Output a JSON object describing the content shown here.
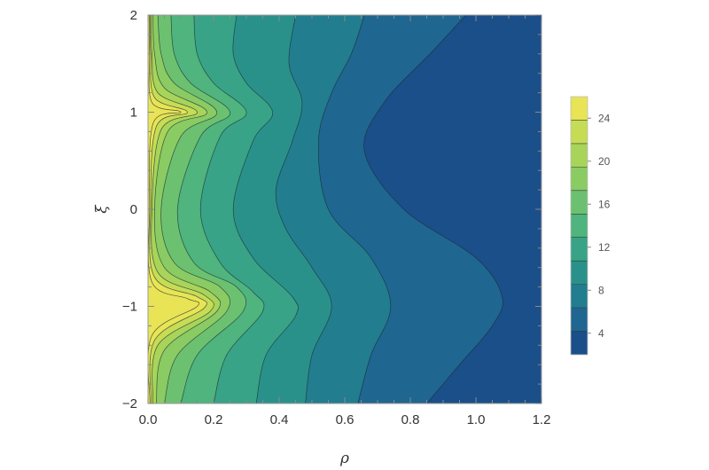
{
  "chart_data": {
    "type": "contour",
    "xlabel": "ρ",
    "ylabel": "ξ",
    "xlim": [
      0.0,
      1.2
    ],
    "ylim": [
      -2,
      2
    ],
    "x_ticks": [
      "0.0",
      "0.2",
      "0.4",
      "0.6",
      "0.8",
      "1.0",
      "1.2"
    ],
    "y_ticks": [
      "-2",
      "-1",
      "0",
      "1",
      "2"
    ],
    "colorbar": {
      "ticks": [
        "4",
        "8",
        "12",
        "16",
        "20",
        "24"
      ],
      "range": [
        2,
        26
      ],
      "colors": [
        "#1b4f8a",
        "#1f6690",
        "#227d8f",
        "#2a918a",
        "#38a386",
        "#4fb47d",
        "#6cc170",
        "#8acb63",
        "#a8d45a",
        "#c6dc55",
        "#e8e455"
      ]
    },
    "contour_boundaries": [
      {
        "level": 2,
        "points": [
          [
            1.2,
            -2
          ],
          [
            1.2,
            2
          ]
        ]
      },
      {
        "level": 4,
        "points": [
          [
            0.85,
            -2
          ],
          [
            0.95,
            -1.6
          ],
          [
            1.05,
            -1.2
          ],
          [
            1.08,
            -0.9
          ],
          [
            1.0,
            -0.5
          ],
          [
            0.78,
            0.0
          ],
          [
            0.66,
            0.6
          ],
          [
            0.72,
            1.1
          ],
          [
            0.86,
            1.6
          ],
          [
            0.97,
            2.0
          ]
        ]
      },
      {
        "level": 6,
        "points": [
          [
            0.64,
            -2
          ],
          [
            0.68,
            -1.5
          ],
          [
            0.74,
            -1.0
          ],
          [
            0.68,
            -0.5
          ],
          [
            0.55,
            0.0
          ],
          [
            0.52,
            0.7
          ],
          [
            0.56,
            1.2
          ],
          [
            0.62,
            1.6
          ],
          [
            0.66,
            2.0
          ]
        ]
      },
      {
        "level": 8,
        "points": [
          [
            0.48,
            -2
          ],
          [
            0.5,
            -1.5
          ],
          [
            0.56,
            -1.0
          ],
          [
            0.5,
            -0.6
          ],
          [
            0.42,
            -0.2
          ],
          [
            0.39,
            0.2
          ],
          [
            0.44,
            0.7
          ],
          [
            0.47,
            1.1
          ],
          [
            0.43,
            1.5
          ],
          [
            0.45,
            2.0
          ]
        ]
      },
      {
        "level": 10,
        "points": [
          [
            0.33,
            -2
          ],
          [
            0.36,
            -1.5
          ],
          [
            0.45,
            -1.1
          ],
          [
            0.44,
            -0.9
          ],
          [
            0.32,
            -0.5
          ],
          [
            0.26,
            0.0
          ],
          [
            0.32,
            0.7
          ],
          [
            0.38,
            1.0
          ],
          [
            0.3,
            1.3
          ],
          [
            0.26,
            1.6
          ],
          [
            0.27,
            2.0
          ]
        ]
      },
      {
        "level": 12,
        "points": [
          [
            0.2,
            -2
          ],
          [
            0.24,
            -1.5
          ],
          [
            0.35,
            -1.05
          ],
          [
            0.32,
            -0.85
          ],
          [
            0.22,
            -0.55
          ],
          [
            0.16,
            0.0
          ],
          [
            0.22,
            0.75
          ],
          [
            0.3,
            1.0
          ],
          [
            0.2,
            1.3
          ],
          [
            0.15,
            1.6
          ],
          [
            0.14,
            2.0
          ]
        ]
      },
      {
        "level": 14,
        "points": [
          [
            0.1,
            -2
          ],
          [
            0.15,
            -1.5
          ],
          [
            0.29,
            -1.05
          ],
          [
            0.27,
            -0.8
          ],
          [
            0.14,
            -0.55
          ],
          [
            0.09,
            0.0
          ],
          [
            0.16,
            0.75
          ],
          [
            0.25,
            1.0
          ],
          [
            0.13,
            1.3
          ],
          [
            0.08,
            1.6
          ],
          [
            0.07,
            2.0
          ]
        ]
      },
      {
        "level": 16,
        "points": [
          [
            0.05,
            -2
          ],
          [
            0.09,
            -1.5
          ],
          [
            0.24,
            -1.05
          ],
          [
            0.22,
            -0.8
          ],
          [
            0.08,
            -0.55
          ],
          [
            0.04,
            0.0
          ],
          [
            0.1,
            0.75
          ],
          [
            0.21,
            1.0
          ],
          [
            0.08,
            1.3
          ],
          [
            0.04,
            1.6
          ],
          [
            0.03,
            2.0
          ]
        ]
      },
      {
        "level": 18,
        "points": [
          [
            0.025,
            -2
          ],
          [
            0.05,
            -1.45
          ],
          [
            0.21,
            -1.05
          ],
          [
            0.19,
            -0.85
          ],
          [
            0.05,
            -0.6
          ],
          [
            0.02,
            0.0
          ],
          [
            0.06,
            0.8
          ],
          [
            0.18,
            1.0
          ],
          [
            0.05,
            1.25
          ],
          [
            0.02,
            1.6
          ],
          [
            0.015,
            2.0
          ]
        ]
      },
      {
        "level": 20,
        "points": [
          [
            0.015,
            -2
          ],
          [
            0.03,
            -1.4
          ],
          [
            0.19,
            -1.05
          ],
          [
            0.17,
            -0.88
          ],
          [
            0.03,
            -0.65
          ],
          [
            0.012,
            0.0
          ],
          [
            0.04,
            0.82
          ],
          [
            0.15,
            1.0
          ],
          [
            0.03,
            1.2
          ],
          [
            0.012,
            1.6
          ],
          [
            0.01,
            2.0
          ]
        ]
      },
      {
        "level": 22,
        "points": [
          [
            0.01,
            -2
          ],
          [
            0.02,
            -1.35
          ],
          [
            0.17,
            -1.02
          ],
          [
            0.15,
            -0.9
          ],
          [
            0.02,
            -0.7
          ],
          [
            0.008,
            0.0
          ],
          [
            0.025,
            0.85
          ],
          [
            0.12,
            1.0
          ],
          [
            0.02,
            1.15
          ],
          [
            0.008,
            1.6
          ],
          [
            0.006,
            2.0
          ]
        ]
      },
      {
        "level": 24,
        "points": [
          [
            0.006,
            -2
          ],
          [
            0.012,
            -1.3
          ],
          [
            0.15,
            -1.0
          ],
          [
            0.12,
            -0.92
          ],
          [
            0.012,
            -0.75
          ],
          [
            0.005,
            0.0
          ],
          [
            0.015,
            0.88
          ],
          [
            0.1,
            1.0
          ],
          [
            0.012,
            1.1
          ],
          [
            0.005,
            1.6
          ],
          [
            0.004,
            2.0
          ]
        ]
      }
    ]
  }
}
